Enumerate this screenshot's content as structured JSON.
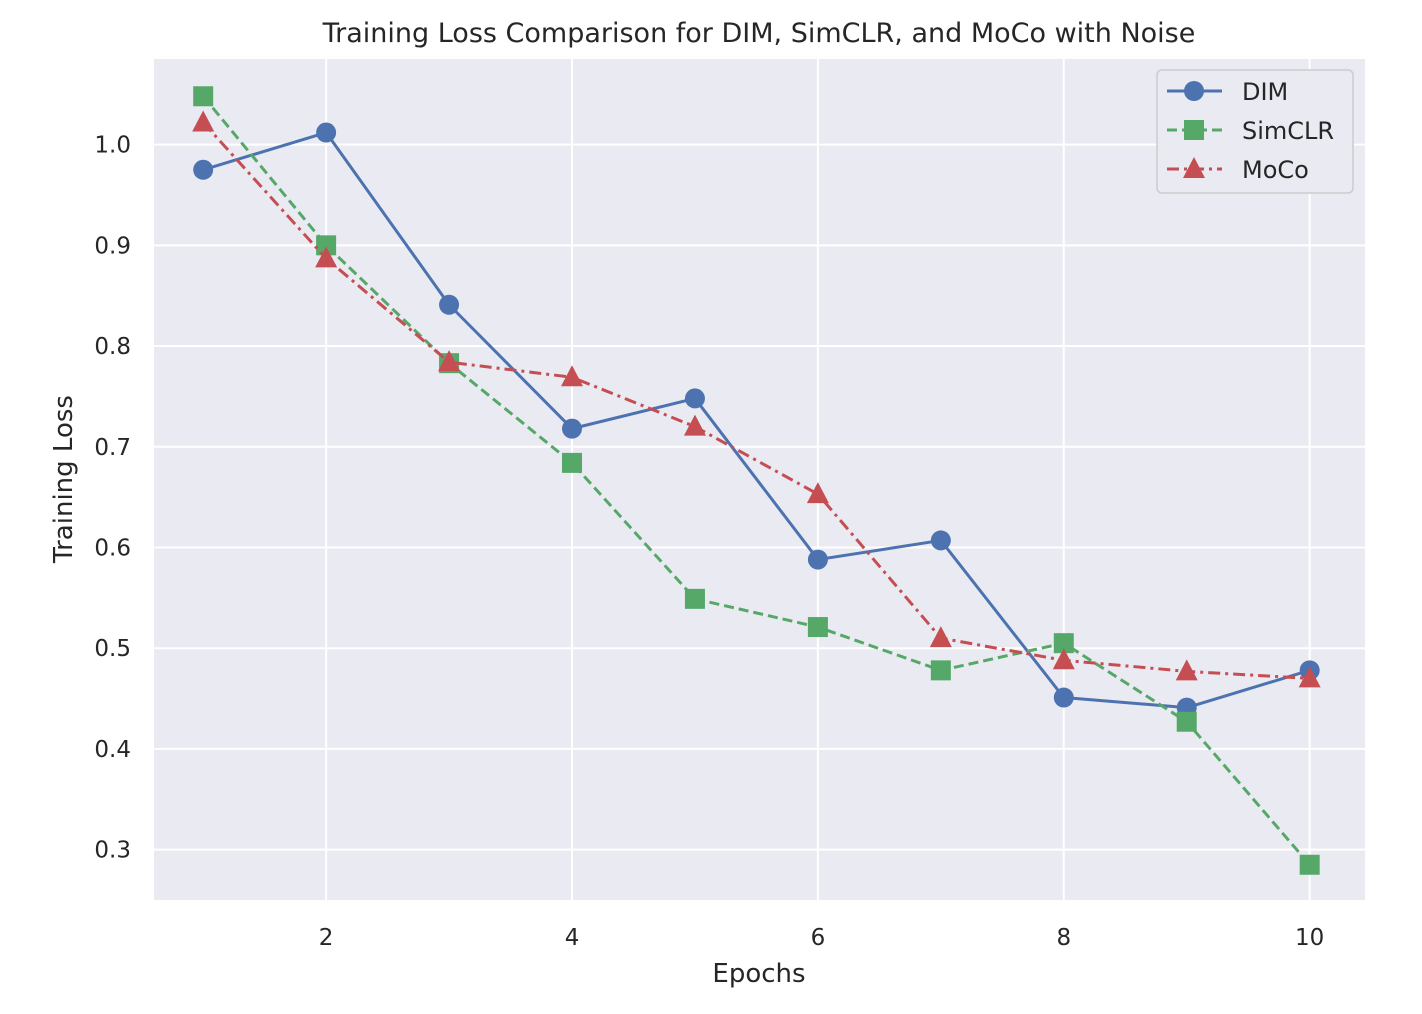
{
  "chart_data": {
    "type": "line",
    "title": "Training Loss Comparison for DIM, SimCLR, and MoCo with Noise",
    "xlabel": "Epochs",
    "ylabel": "Training Loss",
    "xlim": [
      0.6,
      10.45
    ],
    "ylim": [
      0.25,
      1.085
    ],
    "xticks": [
      2,
      4,
      6,
      8,
      10
    ],
    "yticks": [
      0.3,
      0.4,
      0.5,
      0.6,
      0.7,
      0.8,
      0.9,
      1.0
    ],
    "xtick_labels": [
      "2",
      "4",
      "6",
      "8",
      "10"
    ],
    "ytick_labels": [
      "0.3",
      "0.4",
      "0.5",
      "0.6",
      "0.7",
      "0.8",
      "0.9",
      "1.0"
    ],
    "grid": true,
    "legend_position": "top-right",
    "x": [
      1,
      2,
      3,
      4,
      5,
      6,
      7,
      8,
      9,
      10
    ],
    "series": [
      {
        "name": "DIM",
        "color": "#4c72b0",
        "marker": "circle",
        "line_style": "solid",
        "values": [
          0.975,
          1.012,
          0.841,
          0.718,
          0.748,
          0.588,
          0.607,
          0.451,
          0.441,
          0.478
        ]
      },
      {
        "name": "SimCLR",
        "color": "#55a868",
        "marker": "square",
        "line_style": "dashed",
        "values": [
          1.048,
          0.9,
          0.783,
          0.684,
          0.549,
          0.521,
          0.478,
          0.505,
          0.427,
          0.285
        ]
      },
      {
        "name": "MoCo",
        "color": "#c44e52",
        "marker": "triangle",
        "line_style": "dashdot",
        "values": [
          1.022,
          0.887,
          0.784,
          0.769,
          0.72,
          0.653,
          0.51,
          0.488,
          0.477,
          0.47
        ]
      }
    ]
  }
}
